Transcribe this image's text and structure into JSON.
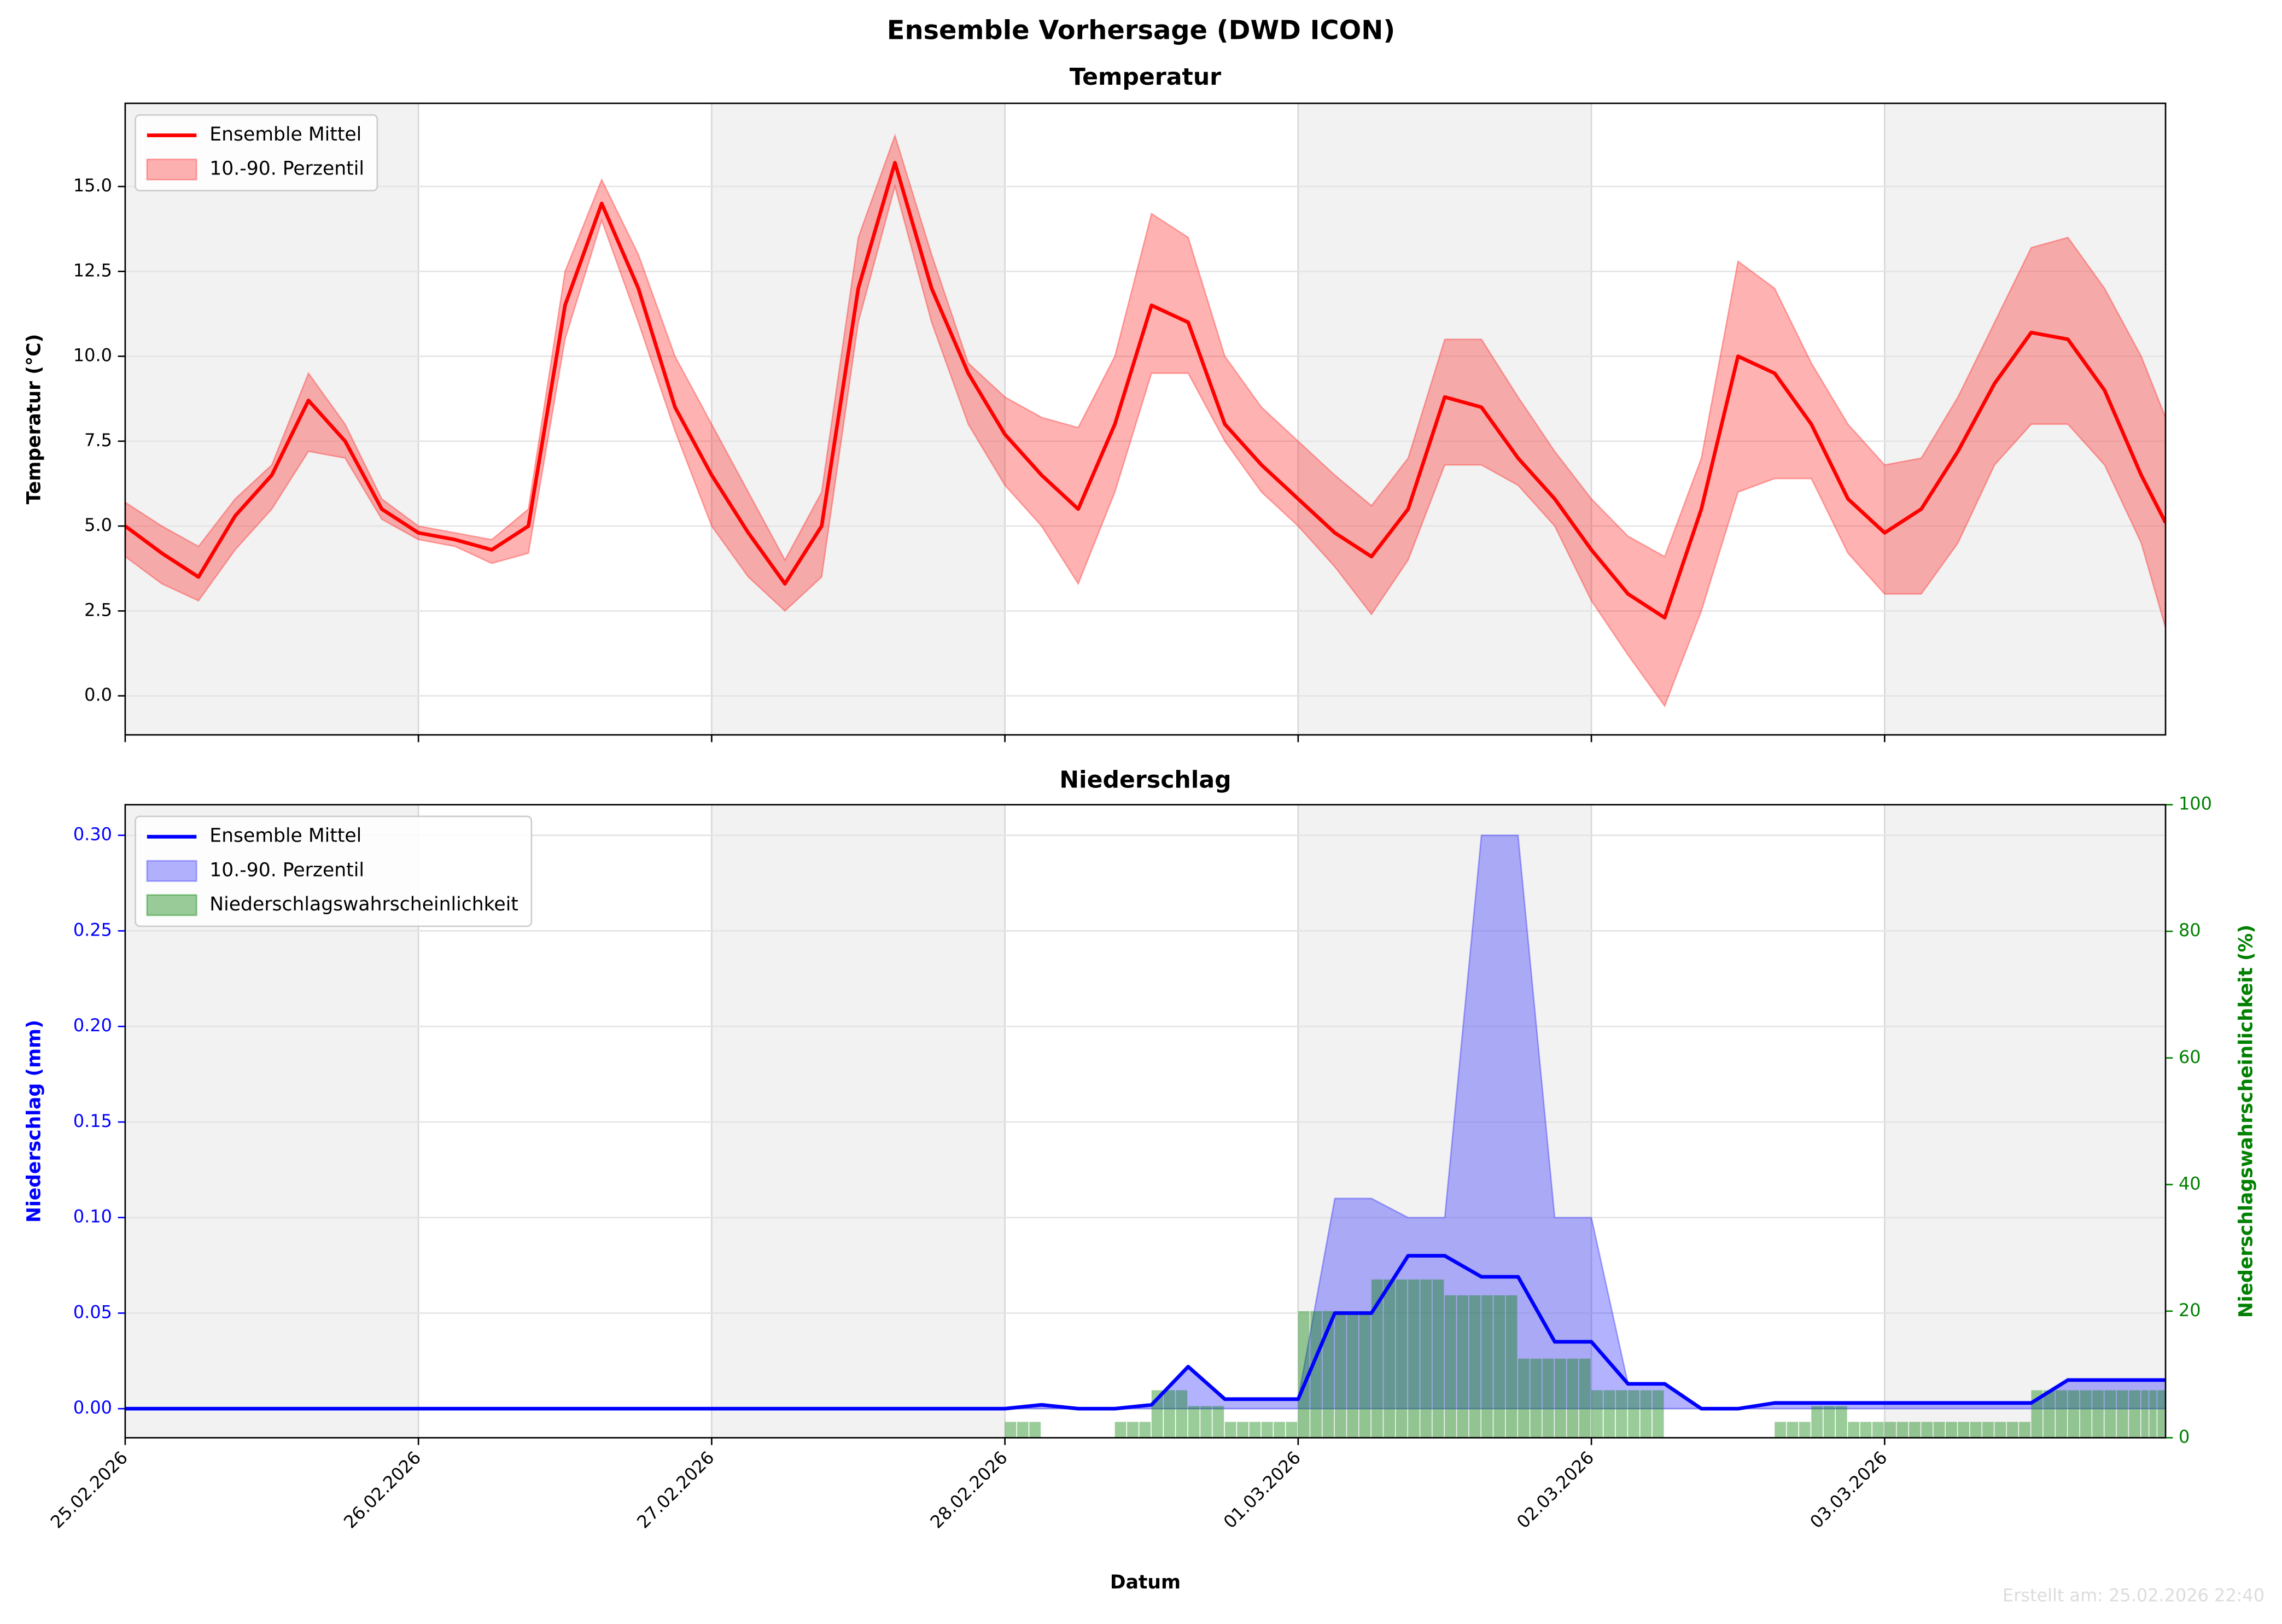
{
  "title": "Ensemble Vorhersage (DWD ICON)",
  "footer": "Erstellt am: 25.02.2026 22:40",
  "chart_data": [
    {
      "type": "line",
      "title": "Temperatur",
      "ylabel": "Temperatur (°C)",
      "x": [
        0,
        0.125,
        0.25,
        0.375,
        0.5,
        0.625,
        0.75,
        0.875,
        1,
        1.125,
        1.25,
        1.375,
        1.5,
        1.625,
        1.75,
        1.875,
        2,
        2.125,
        2.25,
        2.375,
        2.5,
        2.625,
        2.75,
        2.875,
        3,
        3.125,
        3.25,
        3.375,
        3.5,
        3.625,
        3.75,
        3.875,
        4,
        4.125,
        4.25,
        4.375,
        4.5,
        4.625,
        4.75,
        4.875,
        5,
        5.125,
        5.25,
        5.375,
        5.5,
        5.625,
        5.75,
        5.875,
        6,
        6.125,
        6.25,
        6.375,
        6.5,
        6.625,
        6.75,
        6.875,
        6.958
      ],
      "xlim": [
        0,
        6.958
      ],
      "xticks": [
        0,
        1,
        2,
        3,
        4,
        5,
        6
      ],
      "ylim": [
        -1.15,
        17.45
      ],
      "yticks": [
        {
          "value": 0,
          "label": "0.0"
        },
        2.5,
        {
          "value": 5,
          "label": "5.0"
        },
        7.5,
        {
          "value": 10,
          "label": "10.0"
        },
        12.5,
        {
          "value": 15,
          "label": "15.0"
        }
      ],
      "grid": true,
      "legend": "upper left",
      "series": [
        {
          "name": "Ensemble Mittel",
          "color": "#ff0000",
          "values": [
            5.0,
            4.2,
            3.5,
            5.3,
            6.5,
            8.7,
            7.5,
            5.5,
            4.8,
            4.6,
            4.3,
            5.0,
            11.5,
            14.5,
            12.0,
            8.5,
            6.5,
            4.8,
            3.3,
            5.0,
            12.0,
            15.7,
            12.0,
            9.5,
            7.7,
            6.5,
            5.5,
            8.0,
            11.5,
            11.0,
            8.0,
            6.8,
            5.8,
            4.8,
            4.1,
            5.5,
            8.8,
            8.5,
            7.0,
            5.8,
            4.3,
            3.0,
            2.3,
            5.5,
            10.0,
            9.5,
            8.0,
            5.8,
            4.8,
            5.5,
            7.2,
            9.2,
            10.7,
            10.5,
            9.0,
            6.5,
            5.1
          ]
        }
      ],
      "band": {
        "name": "10.-90. Perzentil",
        "color": "#ff0000",
        "upper": [
          5.7,
          5.0,
          4.4,
          5.8,
          6.8,
          9.5,
          8.0,
          5.8,
          5.0,
          4.8,
          4.6,
          5.5,
          12.5,
          15.2,
          13.0,
          10.0,
          8.0,
          6.0,
          4.0,
          6.0,
          13.5,
          16.5,
          13.0,
          9.8,
          8.8,
          8.2,
          7.9,
          10.0,
          14.2,
          13.5,
          10.0,
          8.5,
          7.5,
          6.5,
          5.6,
          7.0,
          10.5,
          10.5,
          8.8,
          7.2,
          5.8,
          4.7,
          4.1,
          7.0,
          12.8,
          12.0,
          9.8,
          8.0,
          6.8,
          7.0,
          8.8,
          11.0,
          13.2,
          13.5,
          12.0,
          10.0,
          8.2
        ],
        "lower": [
          4.1,
          3.3,
          2.8,
          4.3,
          5.5,
          7.2,
          7.0,
          5.2,
          4.6,
          4.4,
          3.9,
          4.2,
          10.5,
          14.0,
          11.0,
          7.8,
          5.0,
          3.5,
          2.5,
          3.5,
          11.0,
          15.0,
          11.0,
          8.0,
          6.2,
          5.0,
          3.3,
          6.0,
          9.5,
          9.5,
          7.5,
          6.0,
          5.0,
          3.8,
          2.4,
          4.0,
          6.8,
          6.8,
          6.2,
          5.0,
          2.8,
          1.2,
          -0.3,
          2.5,
          6.0,
          6.4,
          6.4,
          4.2,
          3.0,
          3.0,
          4.5,
          6.8,
          8.0,
          8.0,
          6.8,
          4.5,
          2.0
        ]
      }
    },
    {
      "type": "line",
      "title": "Niederschlag",
      "ylabel": "Niederschlag (mm)",
      "y2label": "Niederschlagswahrscheinlichkeit (%)",
      "xlabel": "Datum",
      "x": [
        0,
        0.125,
        0.25,
        0.375,
        0.5,
        0.625,
        0.75,
        0.875,
        1,
        1.125,
        1.25,
        1.375,
        1.5,
        1.625,
        1.75,
        1.875,
        2,
        2.125,
        2.25,
        2.375,
        2.5,
        2.625,
        2.75,
        2.875,
        3,
        3.125,
        3.25,
        3.375,
        3.5,
        3.625,
        3.75,
        3.875,
        4,
        4.125,
        4.25,
        4.375,
        4.5,
        4.625,
        4.75,
        4.875,
        5,
        5.125,
        5.25,
        5.375,
        5.5,
        5.625,
        5.75,
        5.875,
        6,
        6.125,
        6.25,
        6.375,
        6.5,
        6.625,
        6.75,
        6.875,
        6.958
      ],
      "xlim": [
        0,
        6.958
      ],
      "xticks": [
        {
          "value": 0,
          "label": "25.02.2026"
        },
        {
          "value": 1,
          "label": "26.02.2026"
        },
        {
          "value": 2,
          "label": "27.02.2026"
        },
        {
          "value": 3,
          "label": "28.02.2026"
        },
        {
          "value": 4,
          "label": "01.03.2026"
        },
        {
          "value": 5,
          "label": "02.03.2026"
        },
        {
          "value": 6,
          "label": "03.03.2026"
        }
      ],
      "ylim": [
        -0.0152,
        0.316
      ],
      "yticks": [
        {
          "value": 0,
          "label": "0.00"
        },
        {
          "value": 0.05,
          "label": "0.05"
        },
        {
          "value": 0.1,
          "label": "0.10"
        },
        {
          "value": 0.15,
          "label": "0.15"
        },
        {
          "value": 0.2,
          "label": "0.20"
        },
        {
          "value": 0.25,
          "label": "0.25"
        },
        {
          "value": 0.3,
          "label": "0.30"
        }
      ],
      "y2lim": [
        0,
        100
      ],
      "y2ticks": [
        0,
        20,
        40,
        60,
        80,
        100
      ],
      "axis_colors": {
        "y": "#0000ff",
        "y2": "#008000"
      },
      "grid": true,
      "legend": "upper left",
      "series": [
        {
          "name": "Ensemble Mittel",
          "color": "#0000ff",
          "values": [
            0,
            0,
            0,
            0,
            0,
            0,
            0,
            0,
            0,
            0,
            0,
            0,
            0,
            0,
            0,
            0,
            0,
            0,
            0,
            0,
            0,
            0,
            0,
            0,
            0,
            0.002,
            0,
            0,
            0.002,
            0.022,
            0.005,
            0.005,
            0.005,
            0.05,
            0.05,
            0.08,
            0.08,
            0.069,
            0.069,
            0.035,
            0.035,
            0.013,
            0.013,
            0,
            0,
            0.003,
            0.003,
            0.003,
            0.003,
            0.003,
            0.003,
            0.003,
            0.003,
            0.015,
            0.015,
            0.015,
            0.015
          ]
        }
      ],
      "band": {
        "name": "10.-90. Perzentil",
        "color": "#0000ff",
        "upper": [
          0,
          0,
          0,
          0,
          0,
          0,
          0,
          0,
          0,
          0,
          0,
          0,
          0,
          0,
          0,
          0,
          0,
          0,
          0,
          0,
          0,
          0,
          0,
          0,
          0,
          0.002,
          0,
          0,
          0.002,
          0.022,
          0.005,
          0.005,
          0.005,
          0.11,
          0.11,
          0.1,
          0.1,
          0.3,
          0.3,
          0.1,
          0.1,
          0.013,
          0.013,
          0,
          0,
          0.003,
          0.003,
          0.003,
          0.003,
          0.003,
          0.003,
          0.003,
          0.003,
          0.015,
          0.015,
          0.015,
          0.015
        ],
        "lower": [
          0,
          0,
          0,
          0,
          0,
          0,
          0,
          0,
          0,
          0,
          0,
          0,
          0,
          0,
          0,
          0,
          0,
          0,
          0,
          0,
          0,
          0,
          0,
          0,
          0,
          0,
          0,
          0,
          0,
          0,
          0,
          0,
          0,
          0,
          0,
          0,
          0,
          0,
          0,
          0,
          0,
          0,
          0,
          0,
          0,
          0,
          0,
          0,
          0,
          0,
          0,
          0,
          0,
          0,
          0,
          0,
          0
        ]
      },
      "bars": {
        "name": "Niederschlagswahrscheinlichkeit",
        "color": "#008000",
        "axis": "y2",
        "values": [
          0,
          0,
          0,
          0,
          0,
          0,
          0,
          0,
          0,
          0,
          0,
          0,
          0,
          0,
          0,
          0,
          0,
          0,
          0,
          0,
          0,
          0,
          0,
          0,
          2.5,
          0,
          0,
          2.5,
          7.5,
          5,
          2.5,
          2.5,
          20,
          20,
          25,
          25,
          22.5,
          22.5,
          12.5,
          12.5,
          7.5,
          7.5,
          0,
          0,
          0,
          2.5,
          5,
          2.5,
          2.5,
          2.5,
          2.5,
          2.5,
          7.5,
          7.5,
          7.5,
          7.5,
          7.5
        ]
      }
    }
  ]
}
